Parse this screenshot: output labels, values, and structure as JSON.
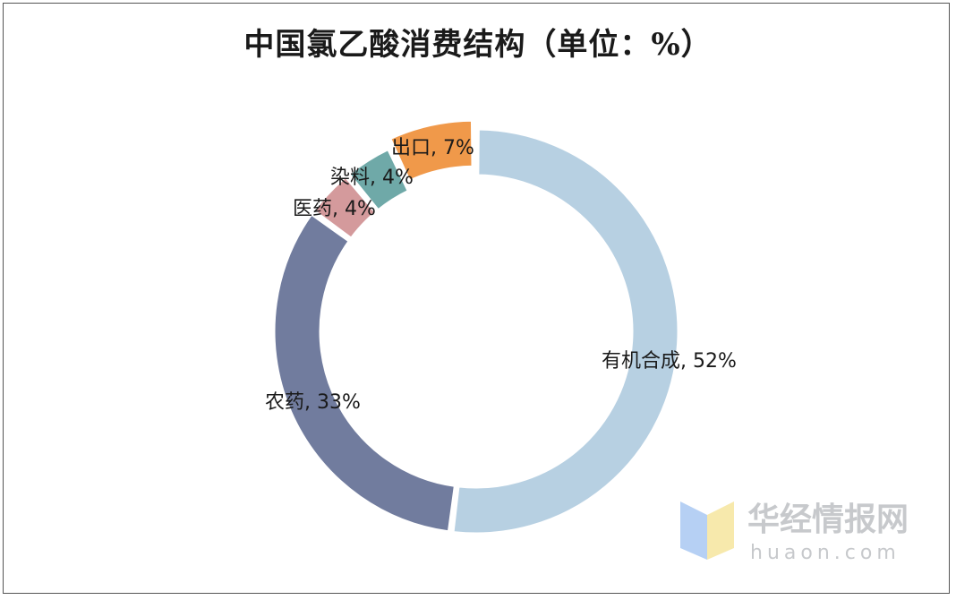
{
  "chart_data": {
    "type": "pie",
    "title": "中国氯乙酸消费结构（单位：%）",
    "slices": [
      {
        "label": "有机合成",
        "value": 52,
        "text": "有机合成, 52%",
        "color": "#b7d0e2"
      },
      {
        "label": "农药",
        "value": 33,
        "text": "农药, 33%",
        "color": "#717c9e"
      },
      {
        "label": "医药",
        "value": 4,
        "text": "医药, 4%",
        "color": "#d49a9c"
      },
      {
        "label": "染料",
        "value": 4,
        "text": "染料, 4%",
        "color": "#6fa9a8"
      },
      {
        "label": "出口",
        "value": 7,
        "text": "出口, 7%",
        "color": "#f0994a"
      }
    ],
    "legend": "none"
  },
  "watermark": {
    "name": "华经情报网",
    "domain": "huaon.com"
  }
}
